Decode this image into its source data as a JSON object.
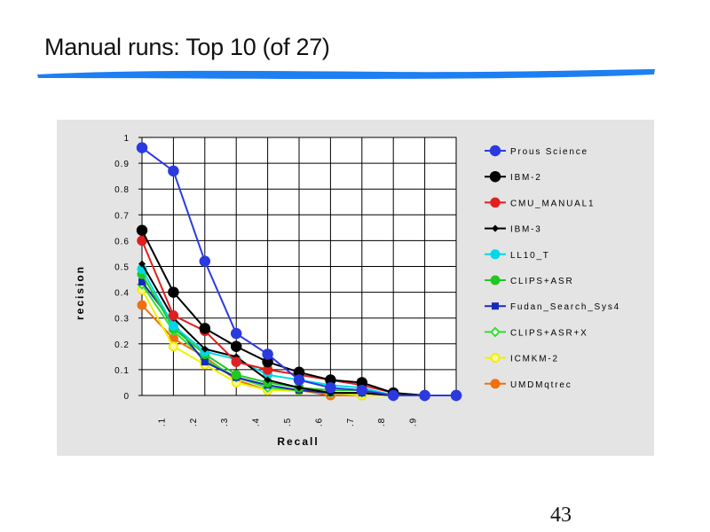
{
  "slide": {
    "title": "Manual runs: Top 10 (of 27)",
    "page_number": "43",
    "rule_color": "#1d7ff2"
  },
  "chart_data": {
    "type": "line",
    "title": "",
    "xlabel": "Recall",
    "ylabel": "recision",
    "xlim": [
      0,
      1
    ],
    "ylim": [
      0,
      1
    ],
    "grid": true,
    "legend_position": "right",
    "x": [
      0,
      0.1,
      0.2,
      0.3,
      0.4,
      0.5,
      0.6,
      0.7,
      0.8,
      0.9,
      1.0
    ],
    "x_tick_labels": [
      ".1",
      ".2",
      ".3",
      ".4",
      ".5",
      ".6",
      ".7",
      ".8",
      ".9"
    ],
    "y_tick_labels": [
      "0",
      "0.1",
      "0.2",
      "0.3",
      "0.4",
      "0.5",
      "0.6",
      "0.7",
      "0.8",
      "0.9",
      "1"
    ],
    "series": [
      {
        "name": "Prous Science",
        "color": "#2a3ae0",
        "marker": "circle-large",
        "values": [
          0.96,
          0.87,
          0.52,
          0.24,
          0.16,
          0.06,
          0.03,
          0.02,
          0.0,
          0.0,
          0.0
        ]
      },
      {
        "name": "IBM-2",
        "color": "#000000",
        "marker": "circle-large",
        "values": [
          0.64,
          0.4,
          0.26,
          0.19,
          0.13,
          0.09,
          0.06,
          0.05,
          0.01,
          0.0,
          0.0
        ]
      },
      {
        "name": "CMU_MANUAL1",
        "color": "#e02020",
        "marker": "circle",
        "values": [
          0.6,
          0.31,
          0.25,
          0.13,
          0.1,
          0.08,
          0.06,
          0.04,
          0.01,
          0.0,
          0.0
        ]
      },
      {
        "name": "IBM-3",
        "color": "#000000",
        "marker": "diamond",
        "values": [
          0.51,
          0.3,
          0.18,
          0.15,
          0.06,
          0.03,
          0.01,
          0.01,
          0.0,
          0.0,
          0.0
        ]
      },
      {
        "name": "LL10_T",
        "color": "#00d8e8",
        "marker": "circle-open",
        "values": [
          0.49,
          0.27,
          0.17,
          0.14,
          0.08,
          0.06,
          0.04,
          0.03,
          0.0,
          0.0,
          0.0
        ]
      },
      {
        "name": "CLIPS+ASR",
        "color": "#20c820",
        "marker": "circle-open",
        "values": [
          0.47,
          0.26,
          0.16,
          0.08,
          0.05,
          0.03,
          0.02,
          0.02,
          0.0,
          0.0,
          0.0
        ]
      },
      {
        "name": "Fudan_Search_Sys4",
        "color": "#1a2ab8",
        "marker": "square",
        "values": [
          0.44,
          0.28,
          0.13,
          0.07,
          0.04,
          0.02,
          0.01,
          0.01,
          0.0,
          0.0,
          0.0
        ]
      },
      {
        "name": "CLIPS+ASR+X",
        "color": "#30e030",
        "marker": "diamond-open",
        "values": [
          0.43,
          0.25,
          0.14,
          0.07,
          0.03,
          0.02,
          0.01,
          0.01,
          0.0,
          0.0,
          0.0
        ]
      },
      {
        "name": "ICMKM-2",
        "color": "#f0f000",
        "marker": "circle-open",
        "values": [
          0.41,
          0.19,
          0.12,
          0.05,
          0.02,
          0.02,
          0.01,
          0.0,
          0.0,
          0.0,
          0.0
        ]
      },
      {
        "name": "UMDMqtrec",
        "color": "#f07010",
        "marker": "circle-open",
        "values": [
          0.35,
          0.22,
          0.15,
          0.06,
          0.02,
          0.02,
          0.0,
          0.0,
          0.0,
          0.0,
          0.0
        ]
      }
    ]
  }
}
